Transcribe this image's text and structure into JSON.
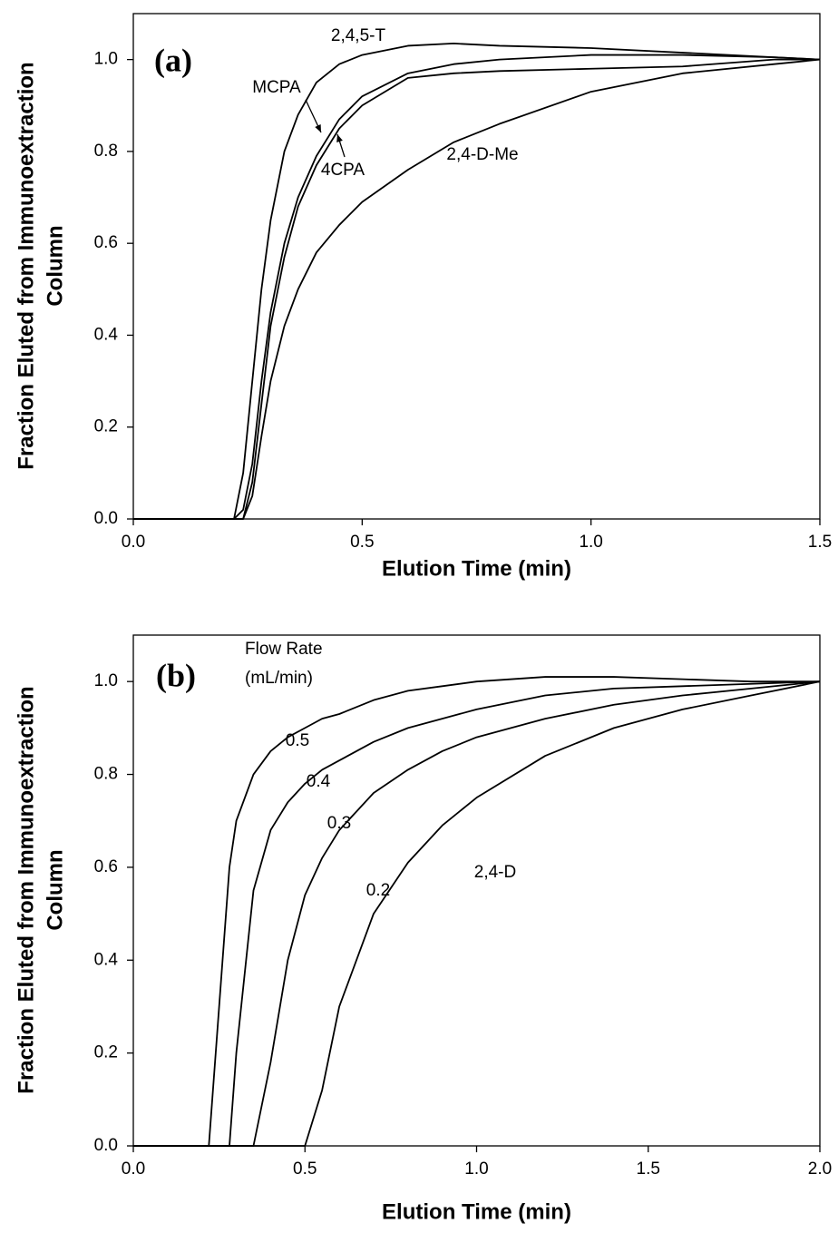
{
  "chart_data": [
    {
      "type": "line",
      "panel_label": "(a)",
      "xlabel": "Elution Time (min)",
      "ylabel": [
        "Fraction Eluted from Immunoextraction",
        "Column"
      ],
      "xlim": [
        0,
        1.5
      ],
      "ylim": [
        0,
        1.1
      ],
      "xticks": [
        {
          "value": 0,
          "label": "0.0"
        },
        {
          "value": 0.5,
          "label": "0.5"
        },
        {
          "value": 1,
          "label": "1.0"
        },
        {
          "value": 1.5,
          "label": "1.5"
        }
      ],
      "yticks": [
        {
          "value": 0,
          "label": "0.0"
        },
        0.2,
        0.4,
        0.6,
        0.8,
        {
          "value": 1,
          "label": "1.0"
        }
      ],
      "x": [
        0,
        0.2,
        0.22,
        0.24,
        0.26,
        0.28,
        0.3,
        0.33,
        0.36,
        0.4,
        0.45,
        0.5,
        0.6,
        0.7,
        0.8,
        1.0,
        1.2,
        1.4,
        1.5
      ],
      "series": [
        {
          "name": "2,4,5-T",
          "color": "#000000",
          "values": [
            0,
            0,
            0,
            0.1,
            0.3,
            0.5,
            0.65,
            0.8,
            0.88,
            0.95,
            0.99,
            1.01,
            1.03,
            1.035,
            1.03,
            1.025,
            1.015,
            1.005,
            1.0
          ]
        },
        {
          "name": "MCPA",
          "color": "#000000",
          "values": [
            0,
            0,
            0,
            0.02,
            0.12,
            0.3,
            0.45,
            0.6,
            0.7,
            0.79,
            0.87,
            0.92,
            0.97,
            0.99,
            1.0,
            1.01,
            1.01,
            1.005,
            1.0
          ]
        },
        {
          "name": "4CPA",
          "color": "#000000",
          "values": [
            0,
            0,
            0,
            0,
            0.08,
            0.25,
            0.42,
            0.57,
            0.68,
            0.77,
            0.85,
            0.9,
            0.96,
            0.97,
            0.975,
            0.98,
            0.985,
            1.0,
            1.0
          ]
        },
        {
          "name": "2,4-D-Me",
          "color": "#000000",
          "values": [
            0,
            0,
            0,
            0,
            0.05,
            0.18,
            0.3,
            0.42,
            0.5,
            0.58,
            0.64,
            0.69,
            0.76,
            0.82,
            0.86,
            0.93,
            0.97,
            0.99,
            1.0
          ]
        }
      ]
    },
    {
      "type": "line",
      "panel_label": "(b)",
      "xlabel": "Elution Time (min)",
      "ylabel": [
        "Fraction Eluted from Immunoextraction",
        "Column"
      ],
      "xlim": [
        0,
        2
      ],
      "ylim": [
        0,
        1.1
      ],
      "xticks": [
        {
          "value": 0,
          "label": "0.0"
        },
        0.5,
        {
          "value": 1,
          "label": "1.0"
        },
        1.5,
        {
          "value": 2,
          "label": "2.0"
        }
      ],
      "yticks": [
        {
          "value": 0,
          "label": "0.0"
        },
        0.2,
        0.4,
        0.6,
        0.8,
        {
          "value": 1,
          "label": "1.0"
        }
      ],
      "annotations": [
        "Flow Rate",
        "(mL/min)",
        "2,4-D"
      ],
      "x": [
        0,
        0.2,
        0.22,
        0.25,
        0.28,
        0.3,
        0.35,
        0.4,
        0.45,
        0.5,
        0.55,
        0.6,
        0.7,
        0.8,
        0.9,
        1.0,
        1.2,
        1.4,
        1.6,
        1.8,
        2.0
      ],
      "series": [
        {
          "name": "0.5",
          "color": "#000000",
          "values": [
            0,
            0,
            0,
            0.3,
            0.6,
            0.7,
            0.8,
            0.85,
            0.88,
            0.9,
            0.92,
            0.93,
            0.96,
            0.98,
            0.99,
            1.0,
            1.01,
            1.01,
            1.005,
            1.0,
            1.0
          ]
        },
        {
          "name": "0.4",
          "color": "#000000",
          "values": [
            0,
            0,
            0,
            0,
            0,
            0.2,
            0.55,
            0.68,
            0.74,
            0.78,
            0.81,
            0.83,
            0.87,
            0.9,
            0.92,
            0.94,
            0.97,
            0.985,
            0.99,
            0.995,
            1.0
          ]
        },
        {
          "name": "0.3",
          "color": "#000000",
          "values": [
            0,
            0,
            0,
            0,
            0,
            0,
            0,
            0.18,
            0.4,
            0.54,
            0.62,
            0.68,
            0.76,
            0.81,
            0.85,
            0.88,
            0.92,
            0.95,
            0.97,
            0.985,
            1.0
          ]
        },
        {
          "name": "0.2",
          "color": "#000000",
          "values": [
            0,
            0,
            0,
            0,
            0,
            0,
            0,
            0,
            0,
            0,
            0.12,
            0.3,
            0.5,
            0.61,
            0.69,
            0.75,
            0.84,
            0.9,
            0.94,
            0.97,
            1.0
          ]
        }
      ]
    }
  ]
}
